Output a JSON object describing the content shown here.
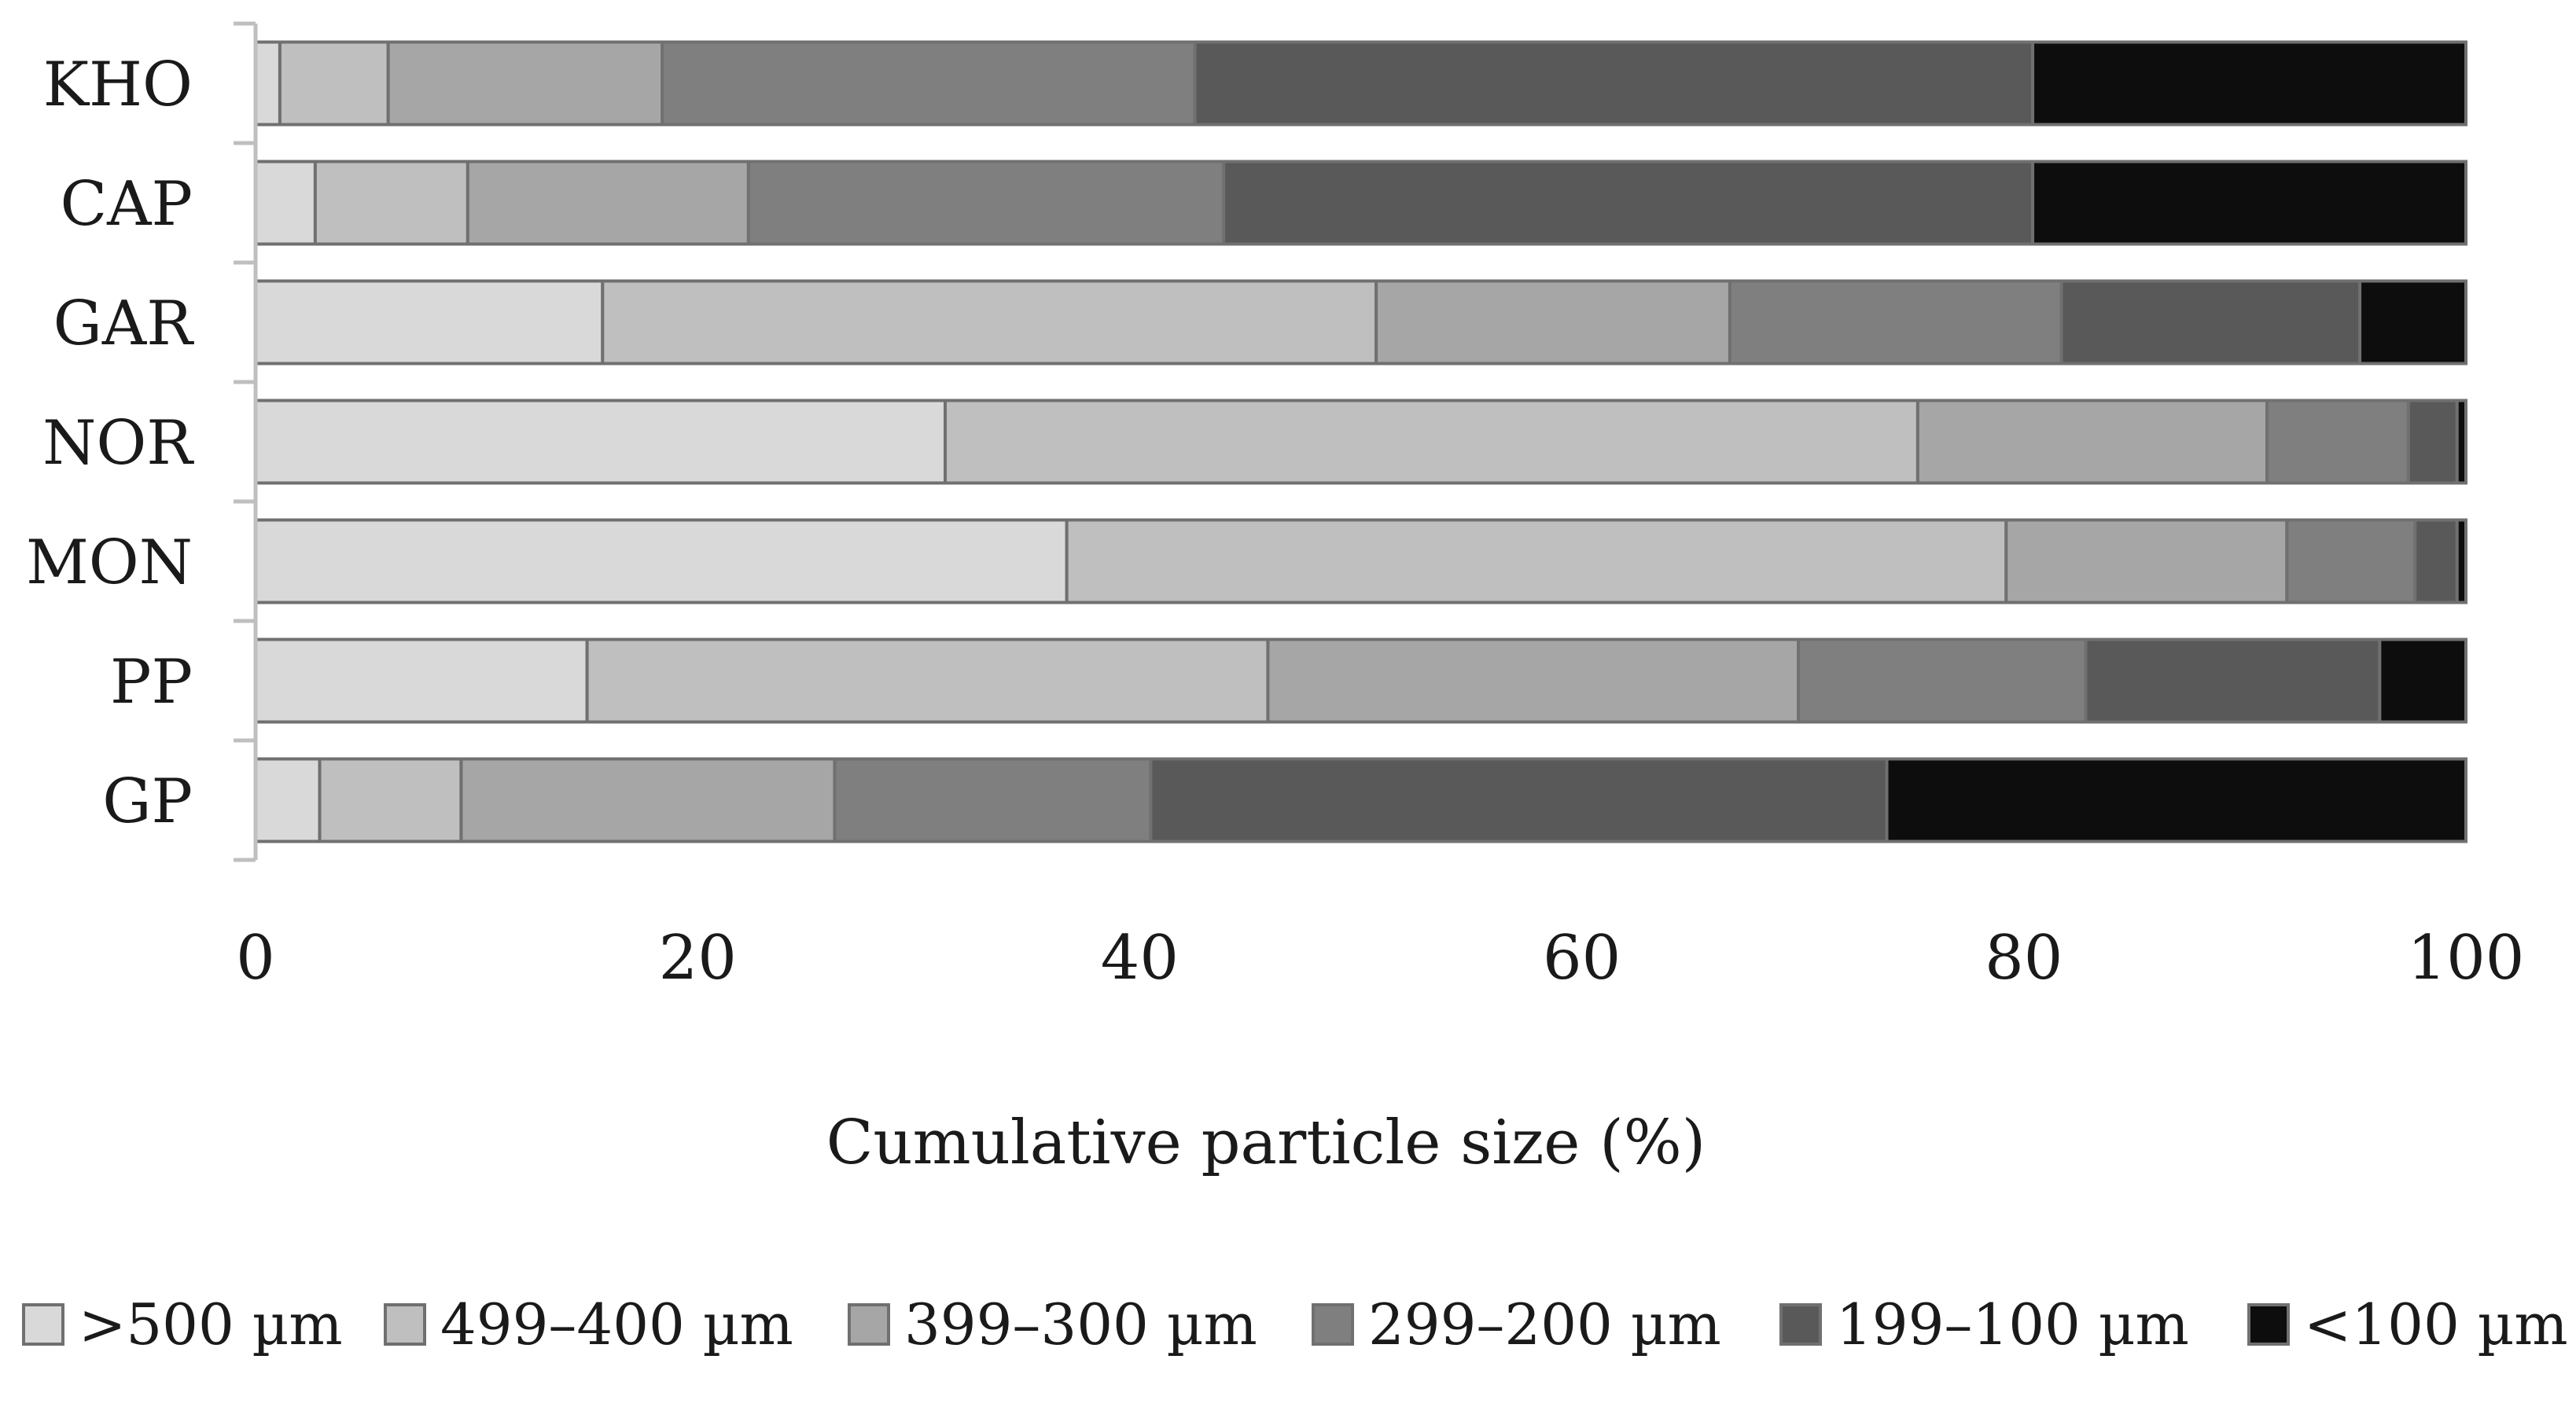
{
  "chart_data": {
    "type": "bar",
    "orientation": "horizontal",
    "stacked": true,
    "title": "",
    "xlabel": "Cumulative particle size (%)",
    "ylabel": "",
    "xlim": [
      0,
      100
    ],
    "xticks": [
      0,
      20,
      40,
      60,
      80,
      100
    ],
    "grid": false,
    "legend_position": "bottom",
    "categories": [
      "KHO",
      "CAP",
      "GAR",
      "NOR",
      "MON",
      "PP",
      "GP"
    ],
    "series": [
      {
        "name": ">500 µm",
        "color": "#d9d9d9",
        "values": [
          1.1,
          2.7,
          15.7,
          31.2,
          36.7,
          15.0,
          2.9
        ]
      },
      {
        "name": "499–400 µm",
        "color": "#bfbfbf",
        "values": [
          4.9,
          6.9,
          35.0,
          44.0,
          42.5,
          30.8,
          6.4
        ]
      },
      {
        "name": "399–300 µm",
        "color": "#a6a6a6",
        "values": [
          12.4,
          12.7,
          16.0,
          15.8,
          12.7,
          24.0,
          16.9
        ]
      },
      {
        "name": "299–200 µm",
        "color": "#7f7f7f",
        "values": [
          24.1,
          21.5,
          15.0,
          6.4,
          5.8,
          13.0,
          14.3
        ]
      },
      {
        "name": "199–100 µm",
        "color": "#595959",
        "values": [
          37.9,
          36.6,
          13.5,
          2.2,
          1.9,
          13.3,
          33.3
        ]
      },
      {
        "name": "<100 µm",
        "color": "#0d0d0d",
        "values": [
          19.6,
          19.6,
          4.8,
          0.4,
          0.4,
          3.9,
          26.2
        ]
      }
    ]
  }
}
